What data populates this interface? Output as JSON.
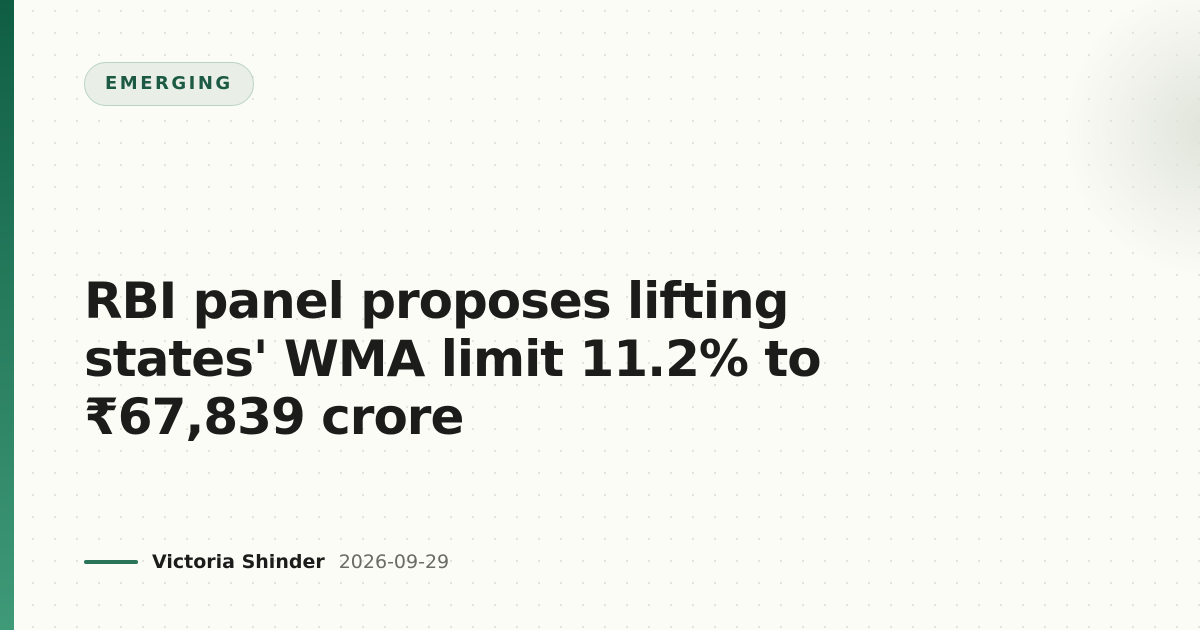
{
  "tag": "EMERGING",
  "headline": "RBI panel proposes lifting states' WMA limit 11.2% to ₹67,839 crore",
  "byline": {
    "author": "Victoria Shinder",
    "date": "2026-09-29"
  }
}
